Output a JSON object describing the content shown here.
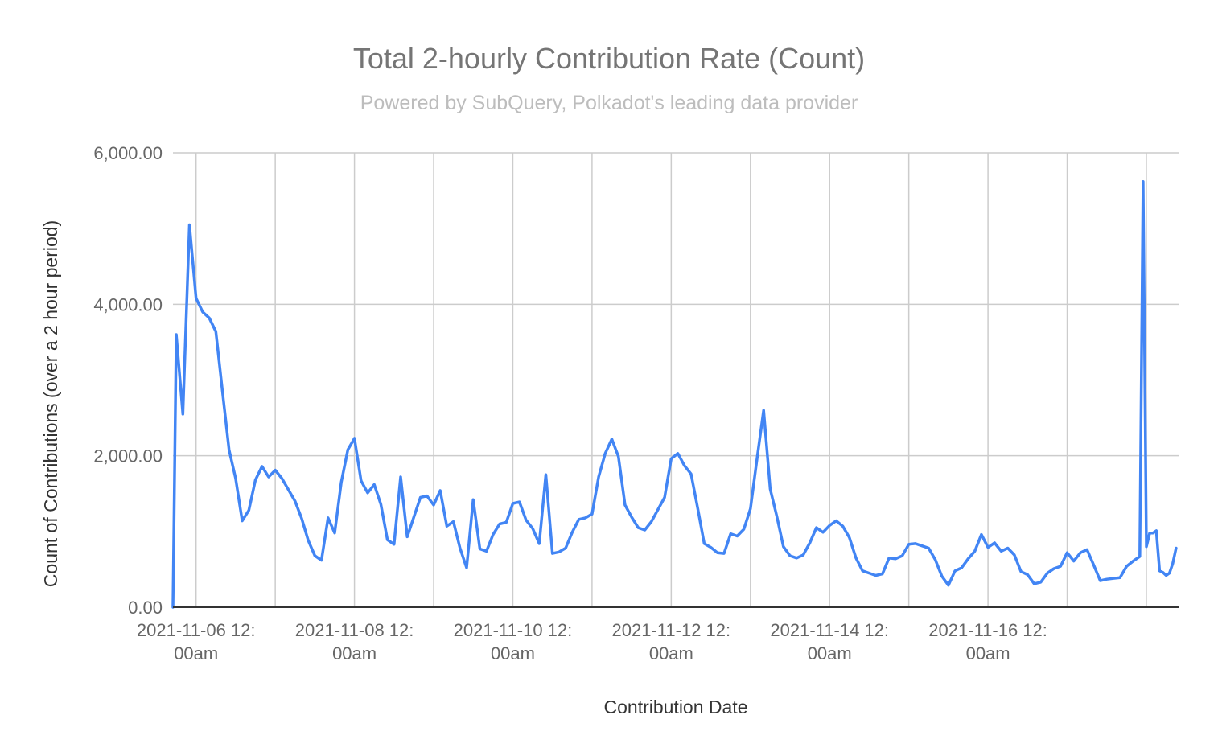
{
  "chart_data": {
    "type": "line",
    "title": "Total 2-hourly Contribution Rate (Count)",
    "subtitle": "Powered by SubQuery, Polkadot's leading data provider",
    "xlabel": "Contribution Date",
    "ylabel": "Count of Contributions (over a 2 hour period)",
    "ylim": [
      0,
      6000
    ],
    "yticks": [
      0,
      2000,
      4000,
      6000
    ],
    "ytick_labels": [
      "0.00",
      "2,000.00",
      "4,000.00",
      "6,000.00"
    ],
    "xticks": [
      {
        "date": "2021-11-06 12:00am",
        "line1": "2021-11-06 12:",
        "line2": "00am"
      },
      {
        "date": "2021-11-08 12:00am",
        "line1": "2021-11-08 12:",
        "line2": "00am"
      },
      {
        "date": "2021-11-10 12:00am",
        "line1": "2021-11-10 12:",
        "line2": "00am"
      },
      {
        "date": "2021-11-12 12:00am",
        "line1": "2021-11-12 12:",
        "line2": "00am"
      },
      {
        "date": "2021-11-14 12:00am",
        "line1": "2021-11-14 12:",
        "line2": "00am"
      },
      {
        "date": "2021-11-16 12:00am",
        "line1": "2021-11-16 12:",
        "line2": "00am"
      }
    ],
    "x_range": [
      "2021-11-05 05:00pm",
      "2021-11-18 10:00am"
    ],
    "grid": true,
    "legend": "none",
    "series": [
      {
        "color": "#4285f4",
        "points": [
          [
            "2021-11-05 05:00pm",
            0
          ],
          [
            "2021-11-05 06:00pm",
            3600
          ],
          [
            "2021-11-05 08:00pm",
            2550
          ],
          [
            "2021-11-05 10:00pm",
            5050
          ],
          [
            "2021-11-06 12:00am",
            4080
          ],
          [
            "2021-11-06 02:00am",
            3900
          ],
          [
            "2021-11-06 04:00am",
            3820
          ],
          [
            "2021-11-06 06:00am",
            3640
          ],
          [
            "2021-11-06 08:00am",
            2850
          ],
          [
            "2021-11-06 10:00am",
            2080
          ],
          [
            "2021-11-06 12:00pm",
            1700
          ],
          [
            "2021-11-06 02:00pm",
            1140
          ],
          [
            "2021-11-06 04:00pm",
            1280
          ],
          [
            "2021-11-06 06:00pm",
            1680
          ],
          [
            "2021-11-06 08:00pm",
            1860
          ],
          [
            "2021-11-06 10:00pm",
            1720
          ],
          [
            "2021-11-07 12:00am",
            1810
          ],
          [
            "2021-11-07 02:00am",
            1700
          ],
          [
            "2021-11-07 04:00am",
            1550
          ],
          [
            "2021-11-07 06:00am",
            1400
          ],
          [
            "2021-11-07 08:00am",
            1170
          ],
          [
            "2021-11-07 10:00am",
            880
          ],
          [
            "2021-11-07 12:00pm",
            680
          ],
          [
            "2021-11-07 02:00pm",
            620
          ],
          [
            "2021-11-07 04:00pm",
            1180
          ],
          [
            "2021-11-07 06:00pm",
            980
          ],
          [
            "2021-11-07 08:00pm",
            1650
          ],
          [
            "2021-11-07 10:00pm",
            2080
          ],
          [
            "2021-11-08 12:00am",
            2230
          ],
          [
            "2021-11-08 02:00am",
            1670
          ],
          [
            "2021-11-08 04:00am",
            1510
          ],
          [
            "2021-11-08 06:00am",
            1620
          ],
          [
            "2021-11-08 08:00am",
            1360
          ],
          [
            "2021-11-08 10:00am",
            890
          ],
          [
            "2021-11-08 12:00pm",
            830
          ],
          [
            "2021-11-08 02:00pm",
            1720
          ],
          [
            "2021-11-08 04:00pm",
            930
          ],
          [
            "2021-11-08 06:00pm",
            1190
          ],
          [
            "2021-11-08 08:00pm",
            1450
          ],
          [
            "2021-11-08 10:00pm",
            1470
          ],
          [
            "2021-11-09 12:00am",
            1350
          ],
          [
            "2021-11-09 02:00am",
            1540
          ],
          [
            "2021-11-09 04:00am",
            1070
          ],
          [
            "2021-11-09 06:00am",
            1130
          ],
          [
            "2021-11-09 08:00am",
            780
          ],
          [
            "2021-11-09 10:00am",
            520
          ],
          [
            "2021-11-09 12:00pm",
            1420
          ],
          [
            "2021-11-09 02:00pm",
            770
          ],
          [
            "2021-11-09 04:00pm",
            740
          ],
          [
            "2021-11-09 06:00pm",
            960
          ],
          [
            "2021-11-09 08:00pm",
            1100
          ],
          [
            "2021-11-09 10:00pm",
            1120
          ],
          [
            "2021-11-10 12:00am",
            1370
          ],
          [
            "2021-11-10 02:00am",
            1390
          ],
          [
            "2021-11-10 04:00am",
            1150
          ],
          [
            "2021-11-10 06:00am",
            1040
          ],
          [
            "2021-11-10 08:00am",
            840
          ],
          [
            "2021-11-10 10:00am",
            1750
          ],
          [
            "2021-11-10 12:00pm",
            710
          ],
          [
            "2021-11-10 02:00pm",
            730
          ],
          [
            "2021-11-10 04:00pm",
            780
          ],
          [
            "2021-11-10 06:00pm",
            990
          ],
          [
            "2021-11-10 08:00pm",
            1160
          ],
          [
            "2021-11-10 10:00pm",
            1180
          ],
          [
            "2021-11-11 12:00am",
            1230
          ],
          [
            "2021-11-11 02:00am",
            1720
          ],
          [
            "2021-11-11 04:00am",
            2030
          ],
          [
            "2021-11-11 06:00am",
            2220
          ],
          [
            "2021-11-11 08:00am",
            1990
          ],
          [
            "2021-11-11 10:00am",
            1350
          ],
          [
            "2021-11-11 12:00pm",
            1190
          ],
          [
            "2021-11-11 02:00pm",
            1050
          ],
          [
            "2021-11-11 04:00pm",
            1020
          ],
          [
            "2021-11-11 06:00pm",
            1130
          ],
          [
            "2021-11-11 08:00pm",
            1290
          ],
          [
            "2021-11-11 10:00pm",
            1450
          ],
          [
            "2021-11-12 12:00am",
            1960
          ],
          [
            "2021-11-12 02:00am",
            2030
          ],
          [
            "2021-11-12 04:00am",
            1870
          ],
          [
            "2021-11-12 06:00am",
            1760
          ],
          [
            "2021-11-12 08:00am",
            1310
          ],
          [
            "2021-11-12 10:00am",
            840
          ],
          [
            "2021-11-12 12:00pm",
            790
          ],
          [
            "2021-11-12 02:00pm",
            720
          ],
          [
            "2021-11-12 04:00pm",
            710
          ],
          [
            "2021-11-12 06:00pm",
            970
          ],
          [
            "2021-11-12 08:00pm",
            940
          ],
          [
            "2021-11-12 10:00pm",
            1030
          ],
          [
            "2021-11-13 12:00am",
            1300
          ],
          [
            "2021-11-13 02:00am",
            1960
          ],
          [
            "2021-11-13 04:00am",
            2600
          ],
          [
            "2021-11-13 06:00am",
            1560
          ],
          [
            "2021-11-13 08:00am",
            1200
          ],
          [
            "2021-11-13 10:00am",
            800
          ],
          [
            "2021-11-13 12:00pm",
            680
          ],
          [
            "2021-11-13 02:00pm",
            650
          ],
          [
            "2021-11-13 04:00pm",
            690
          ],
          [
            "2021-11-13 06:00pm",
            850
          ],
          [
            "2021-11-13 08:00pm",
            1050
          ],
          [
            "2021-11-13 10:00pm",
            990
          ],
          [
            "2021-11-14 12:00am",
            1080
          ],
          [
            "2021-11-14 02:00am",
            1140
          ],
          [
            "2021-11-14 04:00am",
            1070
          ],
          [
            "2021-11-14 06:00am",
            920
          ],
          [
            "2021-11-14 08:00am",
            650
          ],
          [
            "2021-11-14 10:00am",
            480
          ],
          [
            "2021-11-14 12:00pm",
            450
          ],
          [
            "2021-11-14 02:00pm",
            420
          ],
          [
            "2021-11-14 04:00pm",
            440
          ],
          [
            "2021-11-14 06:00pm",
            650
          ],
          [
            "2021-11-14 08:00pm",
            640
          ],
          [
            "2021-11-14 10:00pm",
            680
          ],
          [
            "2021-11-15 12:00am",
            830
          ],
          [
            "2021-11-15 02:00am",
            840
          ],
          [
            "2021-11-15 04:00am",
            810
          ],
          [
            "2021-11-15 06:00am",
            780
          ],
          [
            "2021-11-15 08:00am",
            630
          ],
          [
            "2021-11-15 10:00am",
            410
          ],
          [
            "2021-11-15 12:00pm",
            290
          ],
          [
            "2021-11-15 02:00pm",
            480
          ],
          [
            "2021-11-15 04:00pm",
            520
          ],
          [
            "2021-11-15 06:00pm",
            640
          ],
          [
            "2021-11-15 08:00pm",
            740
          ],
          [
            "2021-11-15 10:00pm",
            960
          ],
          [
            "2021-11-16 12:00am",
            790
          ],
          [
            "2021-11-16 02:00am",
            850
          ],
          [
            "2021-11-16 04:00am",
            740
          ],
          [
            "2021-11-16 06:00am",
            780
          ],
          [
            "2021-11-16 08:00am",
            690
          ],
          [
            "2021-11-16 10:00am",
            470
          ],
          [
            "2021-11-16 12:00pm",
            430
          ],
          [
            "2021-11-16 02:00pm",
            310
          ],
          [
            "2021-11-16 04:00pm",
            330
          ],
          [
            "2021-11-16 06:00pm",
            450
          ],
          [
            "2021-11-16 08:00pm",
            510
          ],
          [
            "2021-11-16 10:00pm",
            540
          ],
          [
            "2021-11-17 12:00am",
            720
          ],
          [
            "2021-11-17 02:00am",
            610
          ],
          [
            "2021-11-17 04:00am",
            720
          ],
          [
            "2021-11-17 06:00am",
            760
          ],
          [
            "2021-11-17 08:00am",
            560
          ],
          [
            "2021-11-17 10:00am",
            350
          ],
          [
            "2021-11-17 12:00pm",
            370
          ],
          [
            "2021-11-17 02:00pm",
            380
          ],
          [
            "2021-11-17 04:00pm",
            390
          ],
          [
            "2021-11-17 06:00pm",
            540
          ],
          [
            "2021-11-17 08:00pm",
            610
          ],
          [
            "2021-11-17 10:00pm",
            670
          ],
          [
            "2021-11-17 11:00pm",
            5620
          ],
          [
            "2021-11-18 12:00am",
            800
          ],
          [
            "2021-11-18 01:00am",
            980
          ],
          [
            "2021-11-18 02:00am",
            980
          ],
          [
            "2021-11-18 03:00am",
            1010
          ],
          [
            "2021-11-18 04:00am",
            480
          ],
          [
            "2021-11-18 05:00am",
            460
          ],
          [
            "2021-11-18 06:00am",
            420
          ],
          [
            "2021-11-18 07:00am",
            450
          ],
          [
            "2021-11-18 08:00am",
            580
          ],
          [
            "2021-11-18 09:00am",
            780
          ]
        ]
      }
    ]
  }
}
